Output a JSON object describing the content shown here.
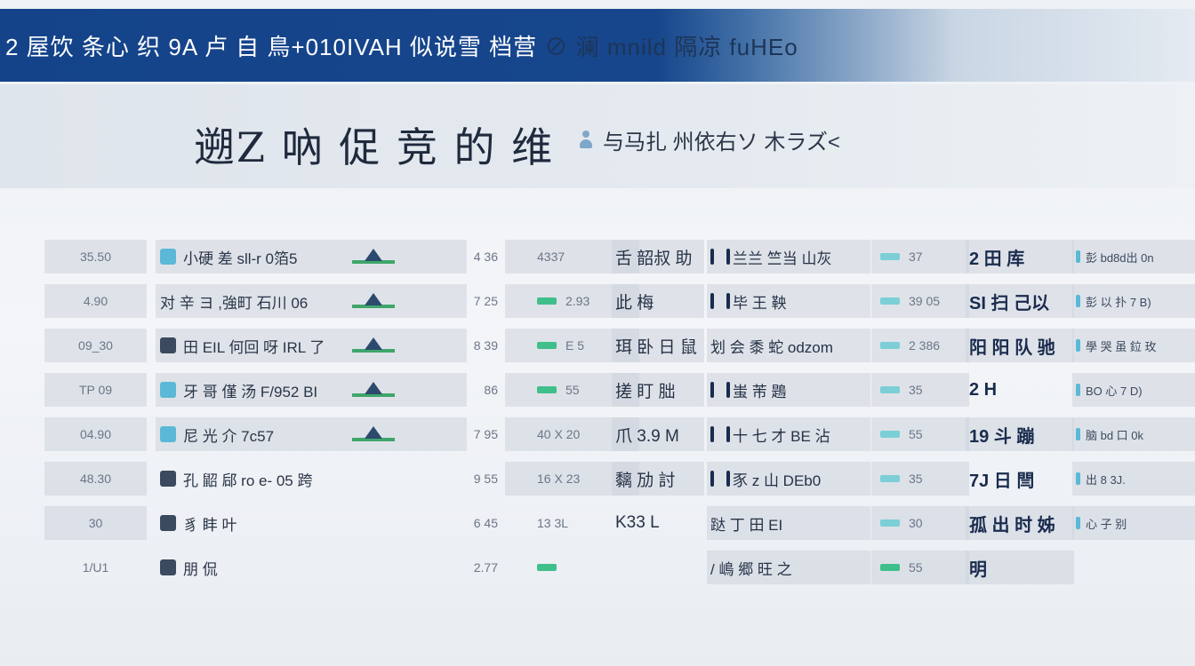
{
  "header": {
    "title": "2 屋饮 条心 织 9A 卢 自 鳥+010IVAH 似说雪 档营",
    "title_right": "⊘ 澜 mnild 隔凉 fuHEo"
  },
  "page": {
    "title": "遡Z 吶 促 竞 的 维",
    "subtitle": "与马扎 州依右ソ 木ラズ<"
  },
  "colors": {
    "header": "#14438a",
    "accent_green": "#3fbf8a",
    "accent_teal": "#5bb8d6",
    "text_dark": "#1a2c4e"
  },
  "rows": [
    {
      "c1": "35.50",
      "c2": "小硬 差 sll-r 0箔5",
      "c2_badge": "teal",
      "c3": true,
      "c4": "4 36",
      "c5": "4337",
      "c5_mini": false,
      "c6": "舌 韶叔 助",
      "c7": "兰兰 竺当 山灰",
      "c8": "37",
      "c9": "2 田 库",
      "c10": "彭 bd8d出 0n"
    },
    {
      "c1": "4.90",
      "c2": "对 辛 ヨ ,強町 石川 06",
      "c2_badge": "none",
      "c3": true,
      "c4": "7 25",
      "c5": "2.93",
      "c5_mini": true,
      "c6": "此 梅",
      "c7": "毕 王 鞅",
      "c8": "39 05",
      "c9": "SI 扫 己以",
      "c10": "彭 以 扑 7 B)"
    },
    {
      "c1": "09_30",
      "c2": "田 EIL 何回 呀 IRL 了",
      "c2_badge": "dark",
      "c3": true,
      "c4": "8 39",
      "c5": "E 5",
      "c5_mini": true,
      "c6": "珥 卧 日 鼠",
      "c7": "划 会 黍 蛇 odzom",
      "c8": "2 386",
      "c9": "阳 阳 队 驰",
      "c10": "學 哭 虽 鉝 玫"
    },
    {
      "c1": "TP 09",
      "c2": "牙 哥 僅 汤 F/952 BI",
      "c2_badge": "teal",
      "c3": true,
      "c4": "86",
      "c5": "55",
      "c5_mini": true,
      "c6": "搓 盯 朏",
      "c7": "蚩 芾 鶗",
      "c8": "35",
      "c9": "2 H",
      "c10": "BO 心 7 D)"
    },
    {
      "c1": "04.90",
      "c2": "尼 光 介 7c57",
      "c2_badge": "teal",
      "c3": true,
      "c4": "7 95",
      "c5": "40 X 20",
      "c5_mini": false,
      "c6": "爪 3.9 M",
      "c7": "十 七 才 BE 沾",
      "c8": "55",
      "c9": "19 斗 蹦",
      "c10": "脑 bd 口 0k"
    },
    {
      "c1": "48.30",
      "c2": "孔 鼦 郈 ro e- 05 跨",
      "c2_badge": "dark",
      "c3": false,
      "c4": "9 55",
      "c5": "16 X 23",
      "c5_mini": false,
      "c6": "黐 劢 討",
      "c7": "豕 z 山 DEb0",
      "c8": "35",
      "c9": "7J 日 閆",
      "c10": "出 8 3J."
    },
    {
      "c1": "30",
      "c2": "豸 盽 叶",
      "c2_badge": "dark",
      "c3": false,
      "c4": "6 45",
      "c5": "13 3L",
      "c5_mini": false,
      "c6": "K33 L",
      "c7": "跶 丁 田 EI",
      "c8": "30",
      "c9": "孤 出 时 姊",
      "c10": "心 子 别"
    },
    {
      "c1": "1/U1",
      "c2": "朋 侃",
      "c2_badge": "dark",
      "c3": false,
      "c4": "2.77",
      "c5": "",
      "c5_mini": true,
      "c6": "",
      "c7": "/ 嶋 郷 旺 之",
      "c8": "55",
      "c9": "明",
      "c10": ""
    }
  ]
}
